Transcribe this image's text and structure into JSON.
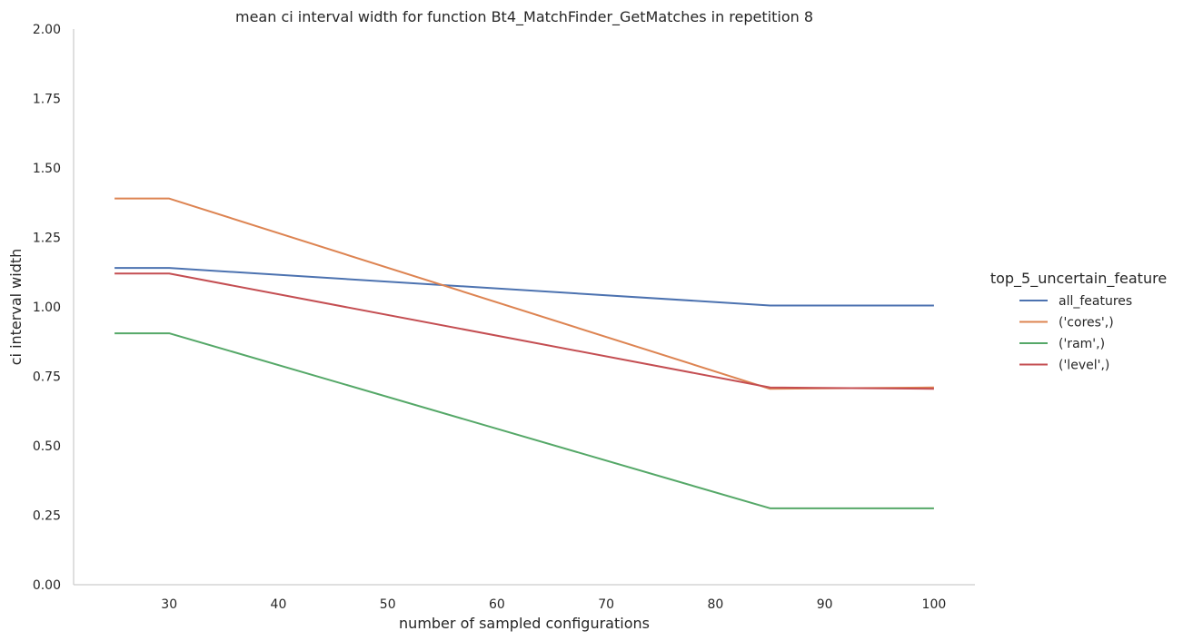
{
  "chart_data": {
    "type": "line",
    "title": "mean ci interval width for function Bt4_MatchFinder_GetMatches in repetition 8",
    "xlabel": "number of sampled configurations",
    "ylabel": "ci interval width",
    "xlim": [
      21.25,
      103.75
    ],
    "ylim": [
      0,
      2.0
    ],
    "xticks": [
      30,
      40,
      50,
      60,
      70,
      80,
      90,
      100
    ],
    "yticks": [
      0.0,
      0.25,
      0.5,
      0.75,
      1.0,
      1.25,
      1.5,
      1.75,
      2.0
    ],
    "ytick_labels": [
      "0.00",
      "0.25",
      "0.50",
      "0.75",
      "1.00",
      "1.25",
      "1.50",
      "1.75",
      "2.00"
    ],
    "grid": false,
    "legend": {
      "title": "top_5_uncertain_feature",
      "placement": "right"
    },
    "x": [
      25,
      30,
      85,
      100
    ],
    "series": [
      {
        "name": "all_features",
        "color": "#4c72b0",
        "values": [
          1.14,
          1.14,
          1.005,
          1.005
        ]
      },
      {
        "name": "('cores',)",
        "color": "#dd8452",
        "values": [
          1.39,
          1.39,
          0.705,
          0.71
        ]
      },
      {
        "name": "('ram',)",
        "color": "#55a868",
        "values": [
          0.905,
          0.905,
          0.275,
          0.275
        ]
      },
      {
        "name": "('level',)",
        "color": "#c44e52",
        "values": [
          1.12,
          1.12,
          0.71,
          0.705
        ]
      }
    ]
  }
}
